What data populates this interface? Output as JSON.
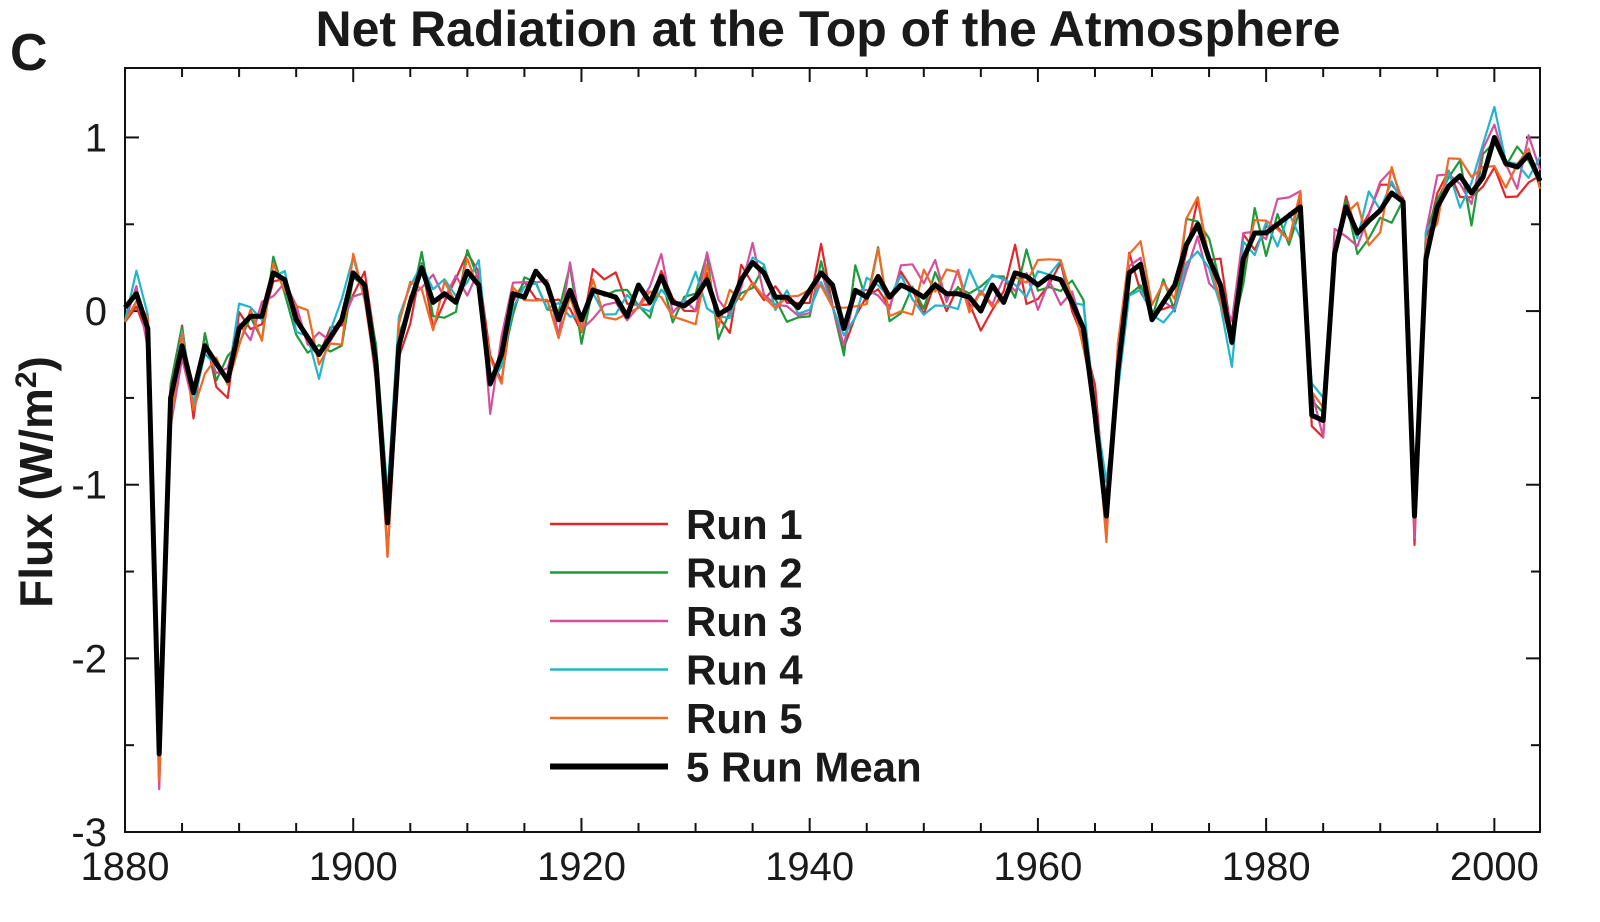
{
  "chart_data": {
    "type": "line",
    "panel_label": "C",
    "title": "Net Radiation at the Top of the Atmosphere",
    "xlabel": "",
    "ylabel": "Flux (W/m",
    "ylabel_sup": "2",
    "ylabel_close": ")",
    "xlim": [
      1880,
      2004
    ],
    "ylim": [
      -3,
      1.4
    ],
    "xticks": [
      1880,
      1900,
      1920,
      1940,
      1960,
      1980,
      2000
    ],
    "xtick_labels": [
      "1880",
      "1900",
      "1920",
      "1940",
      "1960",
      "1980",
      "2000"
    ],
    "yticks": [
      -3,
      -2,
      -1,
      0,
      1
    ],
    "ytick_labels": [
      "-3",
      "-2",
      "-1",
      "0",
      "1"
    ],
    "x_start": 1880,
    "mean": {
      "name": "5 Run Mean",
      "color": "#000000",
      "values": [
        0.02,
        0.1,
        -0.1,
        -2.55,
        -0.5,
        -0.2,
        -0.47,
        -0.2,
        -0.3,
        -0.4,
        -0.1,
        -0.03,
        -0.03,
        0.22,
        0.18,
        -0.05,
        -0.15,
        -0.25,
        -0.15,
        -0.05,
        0.22,
        0.15,
        -0.3,
        -1.22,
        -0.2,
        0.05,
        0.25,
        0.05,
        0.1,
        0.05,
        0.23,
        0.15,
        -0.42,
        -0.25,
        0.1,
        0.08,
        0.23,
        0.15,
        -0.05,
        0.12,
        -0.05,
        0.12,
        0.1,
        0.08,
        -0.03,
        0.15,
        0.05,
        0.2,
        0.05,
        0.03,
        0.08,
        0.18,
        -0.02,
        0.02,
        0.18,
        0.28,
        0.22,
        0.08,
        0.08,
        0.02,
        0.12,
        0.22,
        0.15,
        -0.1,
        0.12,
        0.08,
        0.2,
        0.08,
        0.15,
        0.12,
        0.08,
        0.15,
        0.1,
        0.1,
        0.08,
        0.0,
        0.15,
        0.05,
        0.22,
        0.2,
        0.15,
        0.2,
        0.18,
        0.05,
        -0.1,
        -0.6,
        -1.18,
        -0.35,
        0.22,
        0.27,
        -0.05,
        0.05,
        0.15,
        0.38,
        0.5,
        0.3,
        0.15,
        -0.18,
        0.3,
        0.45,
        0.45,
        0.5,
        0.55,
        0.6,
        -0.6,
        -0.63,
        0.33,
        0.6,
        0.45,
        0.52,
        0.58,
        0.68,
        0.63,
        -1.18,
        0.3,
        0.6,
        0.72,
        0.78,
        0.68,
        0.77,
        1.0,
        0.85,
        0.83,
        0.9,
        0.75
      ]
    },
    "series": [
      {
        "name": "Run 1",
        "color": "#e0282a",
        "noise": 0.1,
        "seed": 11
      },
      {
        "name": "Run 2",
        "color": "#1e9a3a",
        "noise": 0.1,
        "seed": 23
      },
      {
        "name": "Run 3",
        "color": "#d44f9e",
        "noise": 0.1,
        "seed": 37
      },
      {
        "name": "Run 4",
        "color": "#22b5cc",
        "noise": 0.1,
        "seed": 51
      },
      {
        "name": "Run 5",
        "color": "#ef6a25",
        "noise": 0.1,
        "seed": 67
      }
    ],
    "legend": {
      "position": "lower-center",
      "entries": [
        "Run 1",
        "Run 2",
        "Run 3",
        "Run 4",
        "Run 5",
        "5 Run Mean"
      ]
    },
    "grid": false
  }
}
